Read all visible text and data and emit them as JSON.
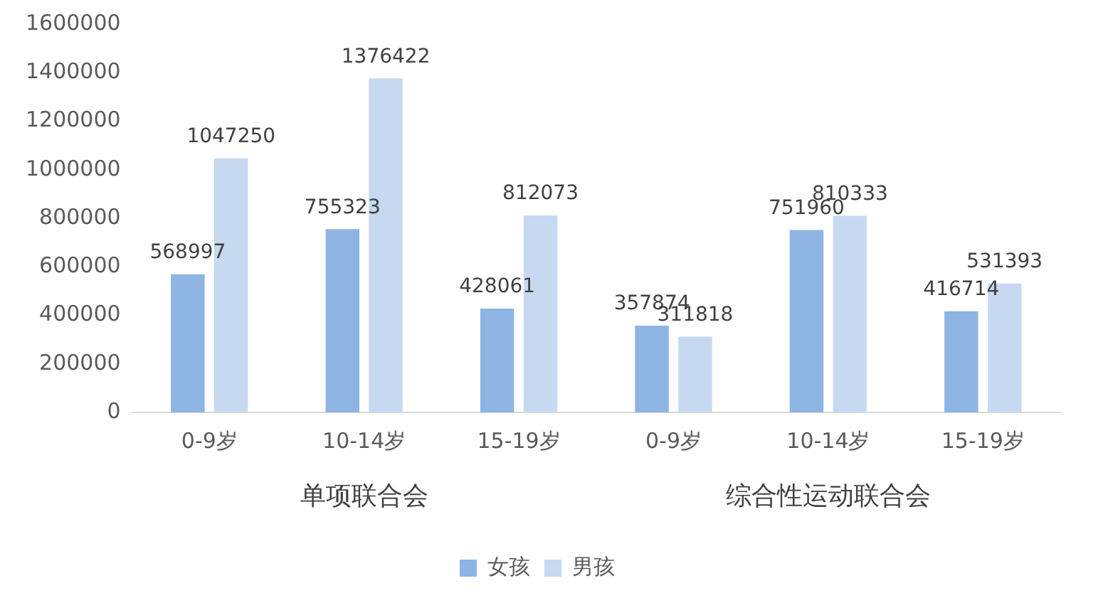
{
  "chart_data": {
    "type": "bar",
    "categories": [
      "0-9岁",
      "10-14岁",
      "15-19岁",
      "0-9岁",
      "10-14岁",
      "15-19岁"
    ],
    "series": [
      {
        "name": "女孩",
        "color": "#8eb4e3",
        "values": [
          568997,
          755323,
          428061,
          357874,
          751960,
          416714
        ]
      },
      {
        "name": "男孩",
        "color": "#c6d9f1",
        "values": [
          1047250,
          1376422,
          812073,
          311818,
          810333,
          531393
        ]
      }
    ],
    "ylim": [
      0,
      1600000
    ],
    "yticks": [
      0,
      200000,
      400000,
      600000,
      800000,
      1000000,
      1200000,
      1400000,
      1600000
    ],
    "annotations": [
      "单项联合会",
      "综合性运动联合会"
    ],
    "data_labels": true,
    "grid": false,
    "legend": "bottom"
  }
}
